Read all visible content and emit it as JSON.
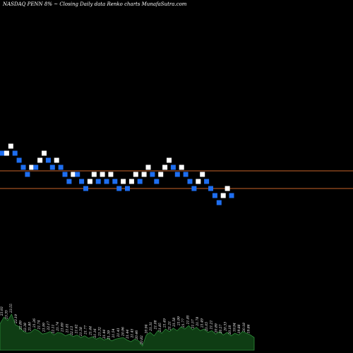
{
  "header": {
    "title": "NASDAQ PENN  8% ~  Closing Daily data  Renko  charts MunafaSutra.com"
  },
  "colors": {
    "background": "#000000",
    "up_brick": "#ffffff",
    "down_brick": "#1e6ef0",
    "reference_line": "#c8642a",
    "volume_area": "#0f3d14",
    "volume_outline": "#2e8b3a",
    "label_text": "#ffffff"
  },
  "chart_data": [
    {
      "type": "renko",
      "title": "NASDAQ PENN  8% ~  Closing Daily data  Renko  charts MunafaSutra.com",
      "reference_lines": [
        21.4,
        19.9
      ],
      "ylim": [
        0,
        48
      ],
      "bricks": [
        {
          "dir": "down",
          "value": 22.9
        },
        {
          "dir": "up",
          "value": 22.9
        },
        {
          "dir": "up",
          "value": 23.5
        },
        {
          "dir": "down",
          "value": 22.9
        },
        {
          "dir": "down",
          "value": 22.3
        },
        {
          "dir": "down",
          "value": 21.7
        },
        {
          "dir": "down",
          "value": 21.1
        },
        {
          "dir": "up",
          "value": 21.7
        },
        {
          "dir": "down",
          "value": 21.7
        },
        {
          "dir": "up",
          "value": 22.3
        },
        {
          "dir": "up",
          "value": 22.9
        },
        {
          "dir": "down",
          "value": 22.3
        },
        {
          "dir": "down",
          "value": 21.7
        },
        {
          "dir": "up",
          "value": 22.3
        },
        {
          "dir": "down",
          "value": 21.7
        },
        {
          "dir": "down",
          "value": 21.1
        },
        {
          "dir": "down",
          "value": 20.5
        },
        {
          "dir": "up",
          "value": 21.1
        },
        {
          "dir": "down",
          "value": 21.1
        },
        {
          "dir": "down",
          "value": 20.5
        },
        {
          "dir": "down",
          "value": 19.9
        },
        {
          "dir": "up",
          "value": 20.5
        },
        {
          "dir": "up",
          "value": 21.1
        },
        {
          "dir": "down",
          "value": 20.5
        },
        {
          "dir": "up",
          "value": 21.1
        },
        {
          "dir": "down",
          "value": 20.5
        },
        {
          "dir": "up",
          "value": 21.1
        },
        {
          "dir": "down",
          "value": 20.5
        },
        {
          "dir": "down",
          "value": 19.9
        },
        {
          "dir": "up",
          "value": 20.5
        },
        {
          "dir": "down",
          "value": 19.9
        },
        {
          "dir": "up",
          "value": 20.5
        },
        {
          "dir": "up",
          "value": 21.1
        },
        {
          "dir": "down",
          "value": 20.5
        },
        {
          "dir": "up",
          "value": 21.1
        },
        {
          "dir": "up",
          "value": 21.7
        },
        {
          "dir": "down",
          "value": 21.1
        },
        {
          "dir": "down",
          "value": 20.5
        },
        {
          "dir": "up",
          "value": 21.1
        },
        {
          "dir": "up",
          "value": 21.7
        },
        {
          "dir": "up",
          "value": 22.3
        },
        {
          "dir": "down",
          "value": 21.7
        },
        {
          "dir": "down",
          "value": 21.1
        },
        {
          "dir": "up",
          "value": 21.7
        },
        {
          "dir": "down",
          "value": 21.1
        },
        {
          "dir": "down",
          "value": 20.5
        },
        {
          "dir": "down",
          "value": 19.9
        },
        {
          "dir": "up",
          "value": 20.5
        },
        {
          "dir": "up",
          "value": 21.1
        },
        {
          "dir": "down",
          "value": 20.5
        },
        {
          "dir": "down",
          "value": 19.9
        },
        {
          "dir": "down",
          "value": 19.3
        },
        {
          "dir": "down",
          "value": 18.7
        },
        {
          "dir": "up",
          "value": 19.3
        },
        {
          "dir": "up",
          "value": 19.9
        },
        {
          "dir": "down",
          "value": 19.3
        }
      ],
      "volume_labels": [
        "23.93",
        "23.35",
        "23.55",
        "23.19",
        "22.89",
        "22.38",
        "21.80",
        "21.26",
        "21.74",
        "21.99",
        "22.17",
        "22.11",
        "21.74",
        "21.69",
        "21.81",
        "22.13",
        "21.62",
        "21.58",
        "21.77",
        "21.44",
        "21.16",
        "21.32",
        "21.44",
        "21.39",
        "21.54",
        "21.41",
        "20.96",
        "21.44",
        "21.45",
        "20.46",
        "20.82",
        "20.94",
        "21.31",
        "21.08",
        "21.85",
        "21.49",
        "21.21",
        "21.58",
        "21.99",
        "21.77",
        "21.85",
        "21.57",
        "21.78",
        "21.49",
        "21.05",
        "21.21",
        "20.89",
        "20.57",
        "20.33",
        "20.18",
        "19.94",
        "19.88",
        "20.18",
        "19.86"
      ],
      "volume_levels": [
        0.62,
        0.78,
        0.7,
        0.85,
        0.6,
        0.55,
        0.45,
        0.4,
        0.42,
        0.5,
        0.46,
        0.38,
        0.4,
        0.44,
        0.36,
        0.42,
        0.4,
        0.34,
        0.38,
        0.32,
        0.36,
        0.3,
        0.34,
        0.28,
        0.32,
        0.26,
        0.3,
        0.24,
        0.28,
        0.22,
        0.26,
        0.28,
        0.3,
        0.24,
        0.2,
        0.26,
        0.22,
        0.1,
        0.36,
        0.42,
        0.34,
        0.46,
        0.4,
        0.5,
        0.44,
        0.52,
        0.46,
        0.55,
        0.5,
        0.58,
        0.48,
        0.54,
        0.46,
        0.5,
        0.42,
        0.46,
        0.38,
        0.44,
        0.36,
        0.42,
        0.34,
        0.4,
        0.36,
        0.44,
        0.4,
        0.36,
        0.3
      ]
    }
  ]
}
